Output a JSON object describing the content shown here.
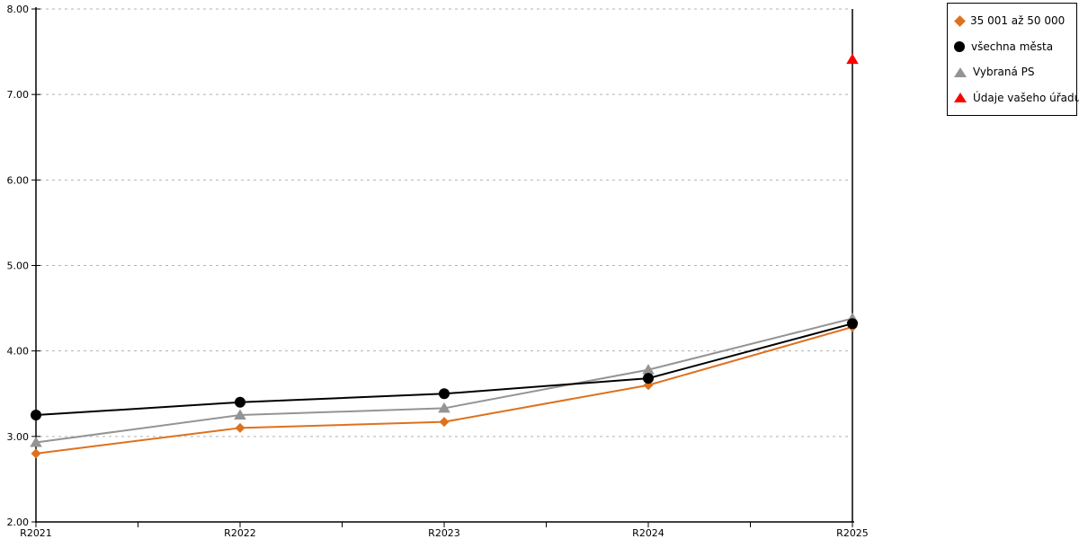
{
  "chart_data": {
    "type": "line",
    "title": "",
    "xlabel": "",
    "ylabel": "",
    "categories": [
      "R2021",
      "R2022",
      "R2023",
      "R2024",
      "R2025"
    ],
    "series": [
      {
        "name": "35 001 až 50 000",
        "color": "#DE711E",
        "marker": "diamond",
        "line": true,
        "values": [
          2.8,
          3.1,
          3.17,
          3.6,
          4.28
        ]
      },
      {
        "name": "všechna města",
        "color": "#000000",
        "marker": "circle",
        "line": true,
        "values": [
          3.25,
          3.4,
          3.5,
          3.68,
          4.32
        ]
      },
      {
        "name": "Vybraná PS",
        "color": "#949494",
        "marker": "triangle",
        "line": true,
        "values": [
          2.93,
          3.25,
          3.33,
          3.78,
          4.38
        ]
      },
      {
        "name": "Údaje vašeho úřadu",
        "color": "#FF0000",
        "marker": "triangle",
        "line": false,
        "values": [
          null,
          null,
          null,
          null,
          7.41
        ]
      }
    ],
    "ylim": [
      2,
      8
    ],
    "ytick_step": 1,
    "ytick_labels": [
      "2.00",
      "3.00",
      "4.00",
      "5.00",
      "6.00",
      "7.00",
      "8.00"
    ],
    "grid": "horizontal-dashed",
    "gridline_color": "#B3B3B3",
    "axis_color": "#000000",
    "legend_position": "top-right"
  }
}
